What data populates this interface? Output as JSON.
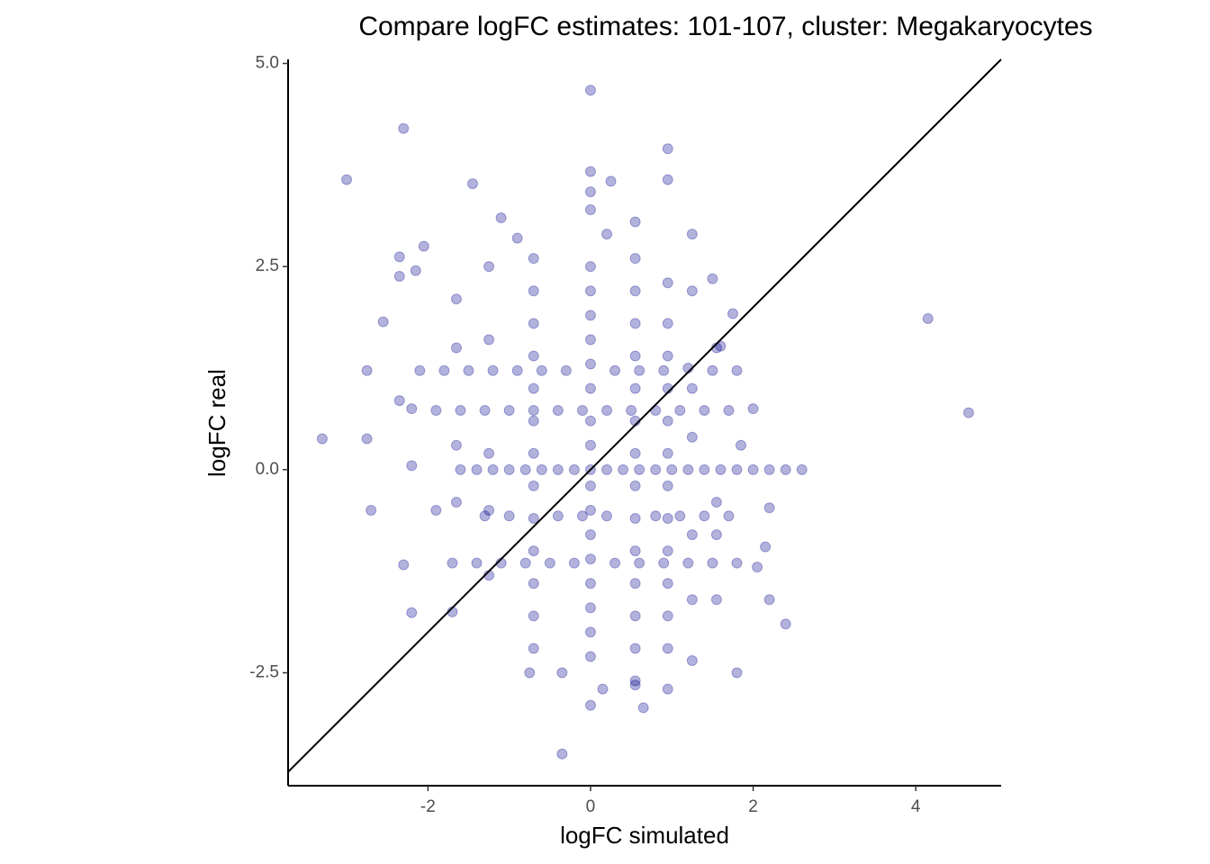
{
  "chart_data": {
    "type": "scatter",
    "title": "Compare logFC estimates: 101-107, cluster: Megakaryocytes",
    "x_label": "logFC simulated",
    "y_label": "logFC real",
    "color": "#00008b",
    "opacity": 0.3,
    "identity_line": true,
    "xlim": [
      -3.72,
      5.05
    ],
    "ylim": [
      -3.89,
      5.05
    ],
    "xticks": [
      -2,
      0,
      2,
      4
    ],
    "yticks": [
      -2.5,
      {
        "value": 0,
        "label": "0.0"
      },
      2.5,
      {
        "value": 5,
        "label": "5.0"
      }
    ],
    "x": [
      -3.3,
      -3.0,
      -2.3,
      0,
      0.95,
      0.95,
      -1.45,
      0,
      0,
      0,
      0.25,
      4.15,
      4.65,
      -2.75,
      -2.7,
      -2.3,
      -2.2,
      -0.35,
      0,
      0.65,
      1.8,
      2.4,
      2.6,
      2.4,
      2.2,
      -2.75,
      -2.55,
      -2.35,
      -2.35,
      -2.35,
      -2.15,
      1.25,
      1.25,
      1.5,
      1.6,
      1.75,
      1.2,
      2.0,
      1.85,
      -0.35,
      -0.75,
      0.15,
      0.55,
      0.95,
      1.25,
      -1.7,
      -1.9,
      -2.2,
      -2.2,
      2.15,
      2.2,
      2.05,
      -1.1,
      -0.9,
      0.2,
      0.55,
      -2.05,
      -1.6,
      -1.4,
      -1.2,
      -1.0,
      -0.8,
      -0.6,
      -0.4,
      -0.2,
      0.2,
      0.4,
      0.6,
      0.8,
      1.0,
      1.2,
      1.4,
      1.6,
      1.8,
      2.0,
      2.2,
      -1.9,
      -1.6,
      -1.3,
      -1.0,
      -0.7,
      -0.4,
      -0.1,
      0.2,
      0.5,
      0.8,
      1.1,
      1.4,
      1.7,
      -2.1,
      -1.8,
      -1.5,
      -1.2,
      -0.9,
      -0.6,
      -0.3,
      0.3,
      0.6,
      0.9,
      1.5,
      1.8,
      -1.7,
      -1.4,
      -1.1,
      -0.8,
      -0.5,
      -0.2,
      0.3,
      0.6,
      0.9,
      1.2,
      1.5,
      1.8,
      -1.3,
      -1.0,
      -0.4,
      -0.1,
      0.2,
      0.8,
      1.1,
      1.4,
      1.7,
      0,
      0,
      0,
      0,
      0,
      0,
      0,
      0,
      0,
      0,
      0,
      0,
      0,
      0,
      0,
      0,
      0,
      -0.7,
      -0.7,
      -0.7,
      -0.7,
      -0.7,
      -0.7,
      -0.7,
      -0.7,
      -0.7,
      -0.7,
      -0.7,
      -0.7,
      -0.7,
      0.55,
      0.55,
      0.55,
      0.55,
      0.55,
      0.55,
      0.55,
      0.55,
      0.55,
      0.55,
      0.55,
      0.55,
      0.55,
      0.55,
      0.95,
      0.95,
      0.95,
      0.95,
      0.95,
      0.95,
      0.95,
      0.95,
      0.95,
      0.95,
      0.95,
      0.95,
      -1.65,
      -1.65,
      -1.65,
      -1.65,
      1.55,
      1.55,
      1.55,
      1.55,
      -1.25,
      -1.25,
      -1.25,
      -1.25,
      -1.25,
      1.25,
      1.25,
      1.25,
      1.25
    ],
    "values": [
      0.38,
      3.57,
      4.2,
      4.67,
      3.95,
      3.57,
      3.52,
      3.67,
      3.42,
      3.2,
      3.55,
      1.86,
      0.7,
      0.38,
      -0.5,
      -1.17,
      -1.76,
      -3.5,
      -2.9,
      -2.93,
      -2.5,
      -1.9,
      0,
      0,
      -0.47,
      1.22,
      1.82,
      2.62,
      2.38,
      0.85,
      2.45,
      2.9,
      2.2,
      2.35,
      1.52,
      1.92,
      1.25,
      0.75,
      0.3,
      -2.5,
      -2.5,
      -2.7,
      -2.65,
      -2.7,
      -2.35,
      -1.75,
      -0.5,
      0.05,
      0.75,
      -0.95,
      -1.6,
      -1.2,
      3.1,
      2.85,
      2.9,
      3.05,
      2.75,
      0,
      0,
      0,
      0,
      0,
      0,
      0,
      0,
      0,
      0,
      0,
      0,
      0,
      0,
      0,
      0,
      0,
      0,
      0,
      0.73,
      0.73,
      0.73,
      0.73,
      0.73,
      0.73,
      0.73,
      0.73,
      0.73,
      0.73,
      0.73,
      0.73,
      0.73,
      1.22,
      1.22,
      1.22,
      1.22,
      1.22,
      1.22,
      1.22,
      1.22,
      1.22,
      1.22,
      1.22,
      1.22,
      -1.15,
      -1.15,
      -1.15,
      -1.15,
      -1.15,
      -1.15,
      -1.15,
      -1.15,
      -1.15,
      -1.15,
      -1.15,
      -1.15,
      -0.57,
      -0.57,
      -0.57,
      -0.57,
      -0.57,
      -0.57,
      -0.57,
      -0.57,
      -0.57,
      -2.3,
      -2.0,
      -1.7,
      -1.4,
      -1.1,
      -0.8,
      -0.5,
      -0.2,
      0,
      0.3,
      0.6,
      1.0,
      1.3,
      1.6,
      1.9,
      2.2,
      2.5,
      -2.2,
      -1.8,
      -1.4,
      -1.0,
      -0.6,
      -0.2,
      0.2,
      0.6,
      1.0,
      1.4,
      1.8,
      2.2,
      2.6,
      -2.6,
      -2.2,
      -1.8,
      -1.4,
      -1.0,
      -0.6,
      -0.2,
      0.2,
      0.6,
      1.0,
      1.4,
      1.8,
      2.2,
      2.6,
      -2.2,
      -1.8,
      -1.4,
      -1.0,
      -0.6,
      -0.2,
      0.2,
      0.6,
      1.0,
      1.4,
      1.8,
      2.3,
      -0.4,
      0.3,
      1.5,
      2.1,
      -0.4,
      -0.8,
      1.5,
      -1.6,
      -1.3,
      -0.5,
      0.2,
      1.6,
      2.5,
      -0.8,
      -1.6,
      0.4,
      1.0
    ]
  }
}
